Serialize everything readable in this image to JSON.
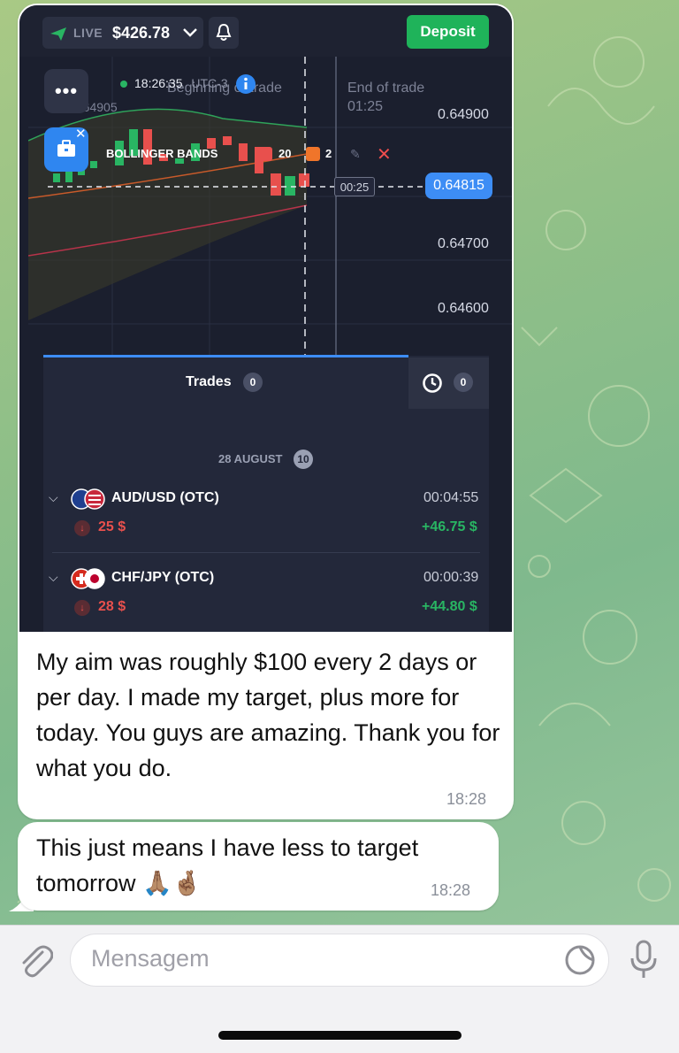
{
  "trading_screenshot": {
    "account_mode": "LIVE",
    "balance": "$426.78",
    "deposit_label": "Deposit",
    "clock": "18:26:35",
    "timezone": "UTC-3",
    "partial_left_value": "0.64905",
    "beginning_label": "Beginning of trade",
    "end_label": "End of trade",
    "end_time": "01:25",
    "prices": [
      "0.64900",
      "0.64815",
      "0.64700",
      "0.64600"
    ],
    "countdown": "00:25",
    "indicator": {
      "name": "BOLLINGER BANDS",
      "period": "20",
      "deviation": "2"
    },
    "menu_dots": "•••",
    "trades_tab_label": "Trades",
    "trades_count": "0",
    "history_count": "0",
    "date_header": "28 AUGUST",
    "date_count": "10",
    "trades": [
      {
        "pair": "AUD/USD (OTC)",
        "duration": "00:04:55",
        "amount": "25 $",
        "profit": "+46.75 $"
      },
      {
        "pair": "CHF/JPY (OTC)",
        "duration": "00:00:39",
        "amount": "28 $",
        "profit": "+44.80 $"
      }
    ],
    "colors": {
      "up": "#29b563",
      "down": "#e8504d",
      "accent": "#3d8df5",
      "deposit": "#1fb35a"
    }
  },
  "messages": [
    {
      "text": "My aim was roughly $100 every 2 days or per day. I made my target, plus more for today. You guys are amazing. Thank you for what you do.",
      "time": "18:28"
    },
    {
      "text": "This just means I have less to target tomorrow 🙏🏽🤞🏽",
      "time": "18:28"
    }
  ],
  "composer": {
    "placeholder": "Mensagem",
    "attach_icon": "paperclip-icon",
    "sticker_icon": "sticker-icon",
    "mic_icon": "microphone-icon"
  }
}
